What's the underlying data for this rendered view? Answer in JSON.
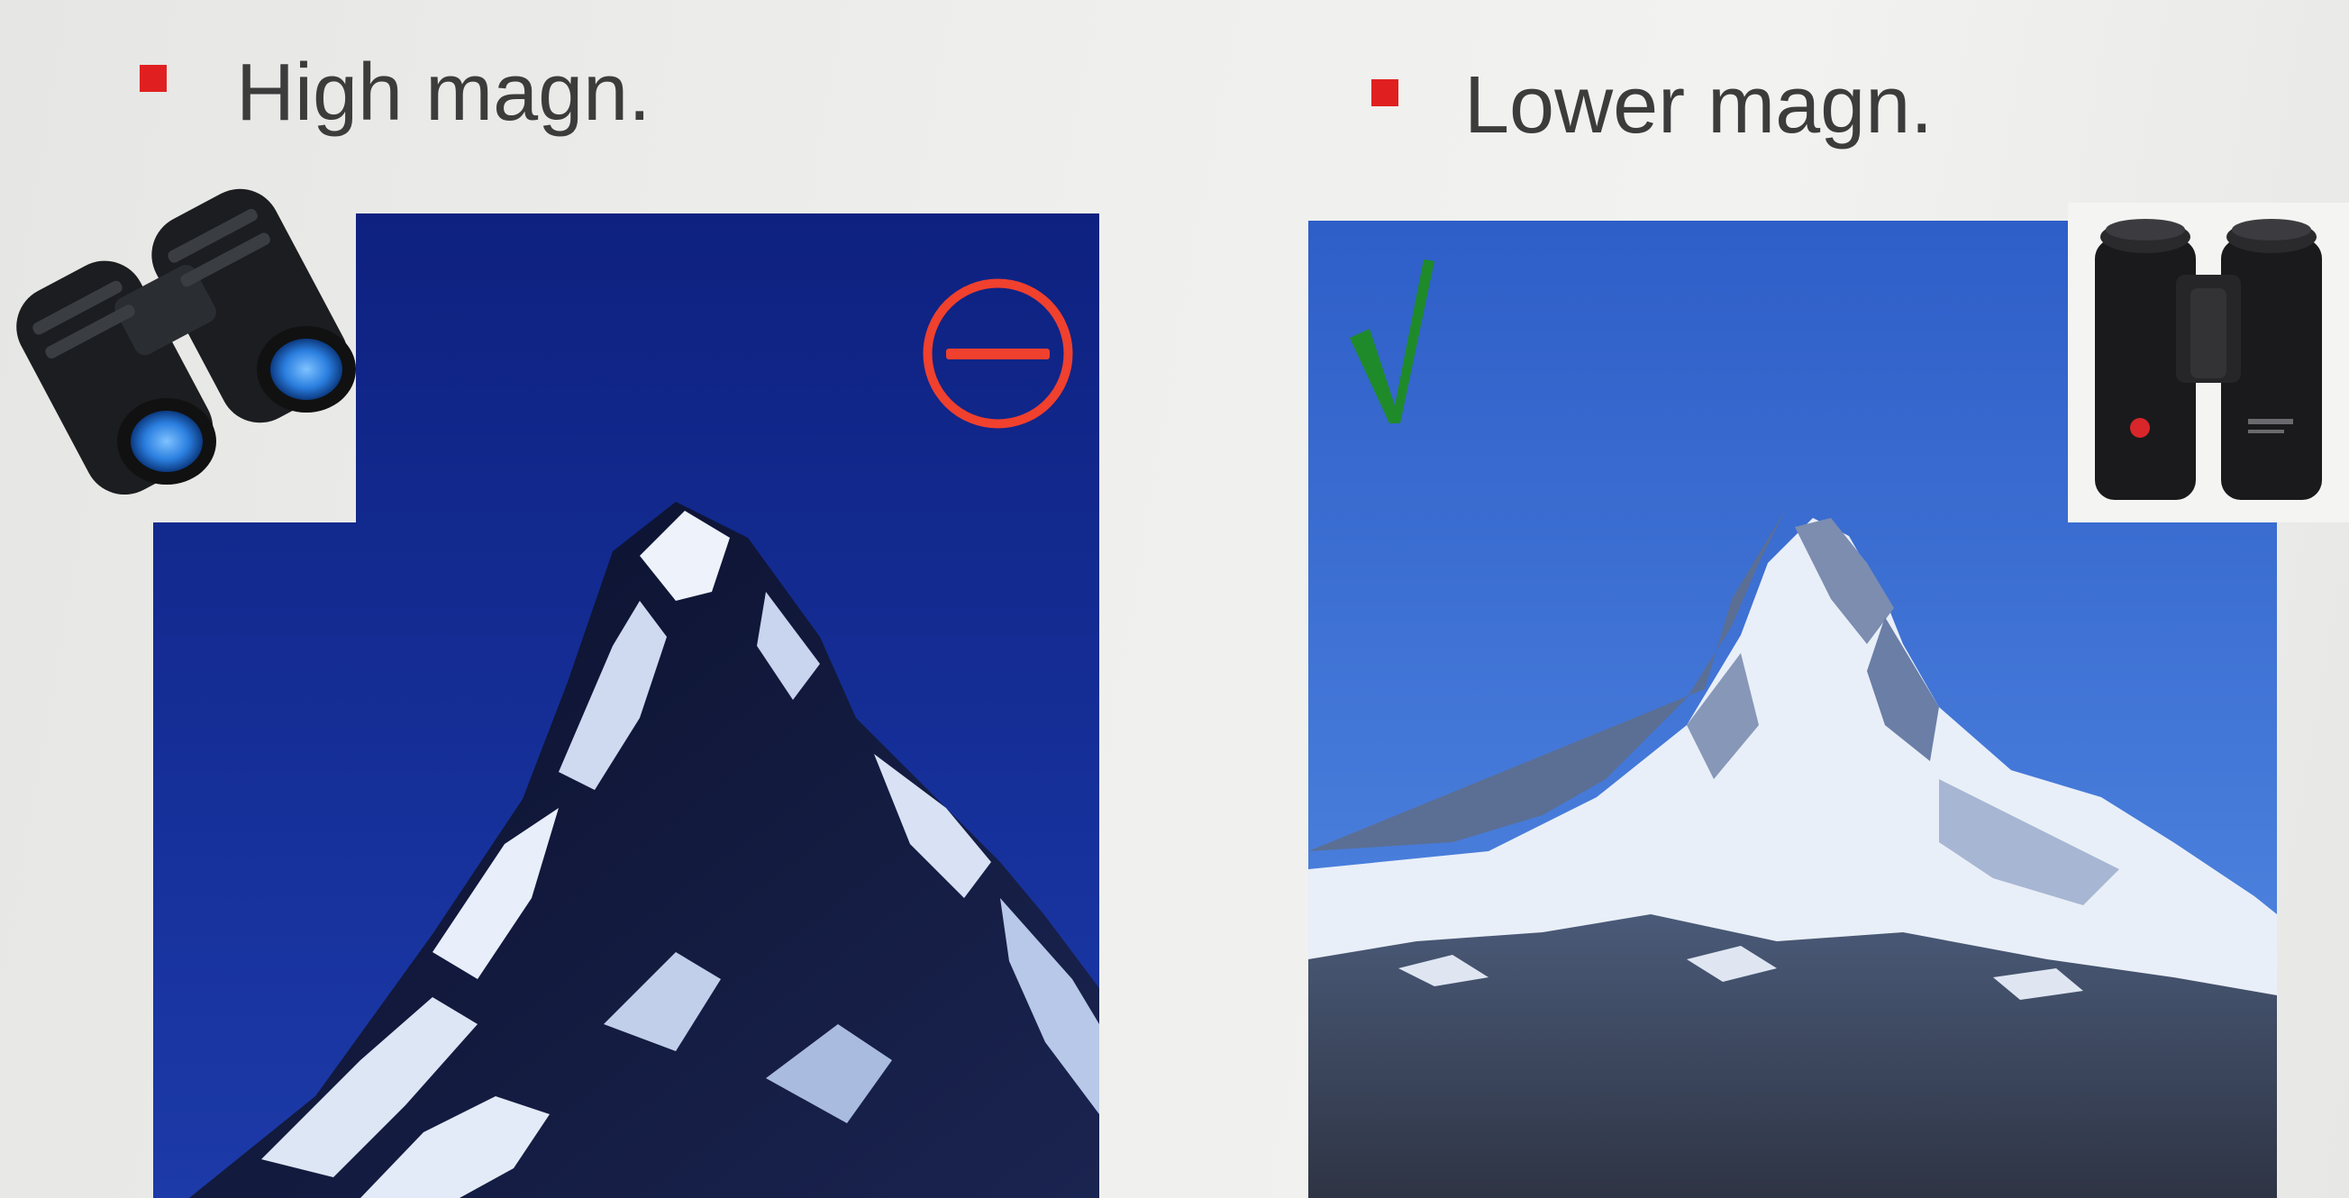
{
  "slide": {
    "left": {
      "heading": "High magn.",
      "verdict_icon": "minus-circle-icon",
      "binocular_icon": "compact-binoculars-icon"
    },
    "right": {
      "heading": "Lower magn.",
      "verdict_icon": "check-mark-icon",
      "binocular_icon": "large-binoculars-icon"
    },
    "colors": {
      "bullet": "#e02020",
      "heading_text": "#3c3c3c",
      "left_sky": "#142a8c",
      "right_sky": "#3d6fd2",
      "minus_circle": "#f0402e",
      "check_mark": "#1f8a2a"
    }
  }
}
